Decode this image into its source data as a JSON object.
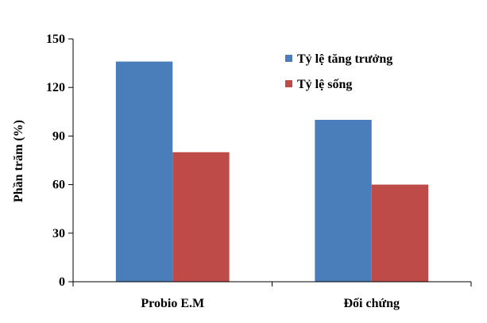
{
  "chart_data": {
    "type": "bar",
    "title": "",
    "xlabel": "",
    "ylabel": "Phần trăm (%)",
    "ylim": [
      0,
      150
    ],
    "yticks": [
      0,
      30,
      60,
      90,
      120,
      150
    ],
    "categories": [
      "Probio E.M",
      "Đối chứng"
    ],
    "series": [
      {
        "name": "Tỷ lệ tăng trưởng",
        "color": "#4a7ebb",
        "values": [
          136,
          100
        ]
      },
      {
        "name": "Tỷ lệ sống",
        "color": "#be4b48",
        "values": [
          80,
          60
        ]
      }
    ],
    "grid": false,
    "legend_position": "top-right"
  }
}
